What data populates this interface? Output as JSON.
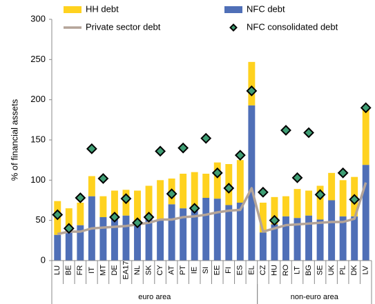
{
  "chart_data": {
    "type": "bar",
    "y_label": "% of financial assets",
    "categories": [
      "LU",
      "BE",
      "FR",
      "IT",
      "MT",
      "DE",
      "EA17",
      "NL",
      "SK",
      "CY",
      "AT",
      "PT",
      "IE",
      "SI",
      "EE",
      "FI",
      "ES",
      "EL",
      "CZ",
      "HU",
      "RO",
      "LT",
      "BG",
      "SE",
      "UK",
      "PL",
      "DK",
      "LV"
    ],
    "groups": [
      {
        "label": "euro area",
        "count": 18
      },
      {
        "label": "non-euro area",
        "count": 10
      }
    ],
    "series": [
      {
        "name": "NFC debt",
        "type": "bar",
        "color": "#4f6fb7",
        "values": [
          32,
          40,
          44,
          80,
          54,
          55,
          56,
          47,
          55,
          50,
          70,
          65,
          65,
          78,
          77,
          69,
          72,
          193,
          35,
          45,
          55,
          53,
          56,
          51,
          75,
          55,
          55,
          119
        ]
      },
      {
        "name": "HH debt",
        "type": "bar",
        "color": "#ffd21f",
        "values": [
          42,
          25,
          28,
          25,
          26,
          32,
          32,
          40,
          38,
          50,
          32,
          43,
          45,
          30,
          45,
          51,
          53,
          54,
          37,
          34,
          25,
          36,
          31,
          42,
          34,
          45,
          49,
          71
        ]
      },
      {
        "name": "Private sector debt",
        "type": "line",
        "color": "#b4a498",
        "values": [
          33,
          36,
          36,
          40,
          41,
          42,
          43,
          45,
          47,
          51,
          51,
          54,
          55,
          57,
          60,
          62,
          63,
          90,
          36,
          40,
          44,
          45,
          46,
          47,
          48,
          48,
          52,
          97
        ]
      },
      {
        "name": "NFC consolidated debt",
        "type": "scatter",
        "color": "#3f9e74",
        "values": [
          57,
          40,
          78,
          139,
          102,
          54,
          77,
          47,
          54,
          136,
          83,
          140,
          65,
          152,
          109,
          90,
          131,
          211,
          85,
          50,
          162,
          103,
          159,
          82,
          null,
          109,
          76,
          190
        ]
      }
    ],
    "legend_order": [
      1,
      0,
      2,
      3
    ],
    "ylim": [
      0,
      300
    ],
    "yticks": [
      0,
      50,
      100,
      150,
      200,
      250,
      300
    ]
  }
}
